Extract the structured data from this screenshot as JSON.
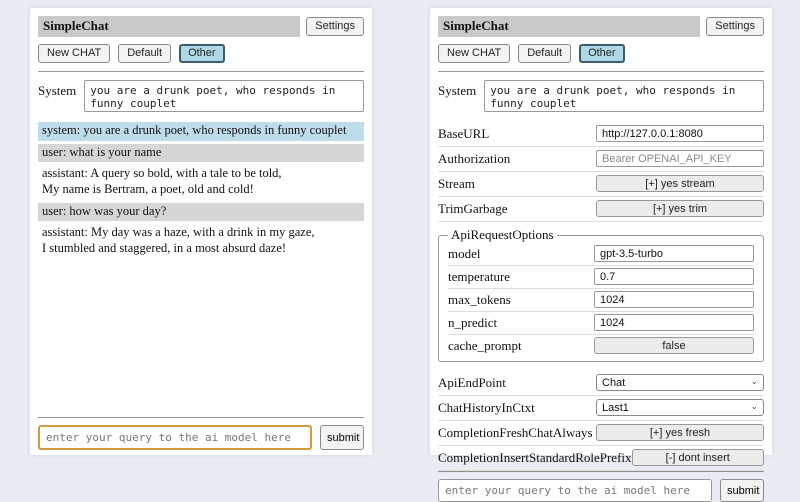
{
  "header": {
    "title": "SimpleChat",
    "settings_label": "Settings",
    "new_chat_label": "New CHAT",
    "sessions": [
      "Default",
      "Other"
    ],
    "active_session": "Other"
  },
  "system_prompt": {
    "label": "System",
    "value": "you are a drunk poet, who responds in funny couplet"
  },
  "chat": {
    "messages": [
      {
        "role": "system",
        "text": "system: you are a drunk poet, who responds in funny couplet"
      },
      {
        "role": "user",
        "text": "user: what is your name"
      },
      {
        "role": "assistant",
        "text": "assistant: A query so bold, with a tale to be told,\nMy name is Bertram, a poet, old and cold!"
      },
      {
        "role": "user",
        "text": "user: how was your day?"
      },
      {
        "role": "assistant",
        "text": "assistant: My day was a haze, with a drink in my gaze,\nI stumbled and staggered, in a most absurd daze!"
      }
    ]
  },
  "query": {
    "placeholder": "enter your query to the ai model here",
    "submit_label": "submit"
  },
  "settings": {
    "rows": [
      {
        "label": "BaseURL",
        "control": "input",
        "value": "http://127.0.0.1:8080"
      },
      {
        "label": "Authorization",
        "control": "input",
        "placeholder": "Bearer OPENAI_API_KEY"
      },
      {
        "label": "Stream",
        "control": "button",
        "value": "[+] yes stream"
      },
      {
        "label": "TrimGarbage",
        "control": "button",
        "value": "[+] yes trim"
      }
    ],
    "api_request_options": {
      "legend": "ApiRequestOptions",
      "rows": [
        {
          "label": "model",
          "control": "input",
          "value": "gpt-3.5-turbo"
        },
        {
          "label": "temperature",
          "control": "input",
          "value": "0.7"
        },
        {
          "label": "max_tokens",
          "control": "input",
          "value": "1024"
        },
        {
          "label": "n_predict",
          "control": "input",
          "value": "1024"
        },
        {
          "label": "cache_prompt",
          "control": "button",
          "value": "false"
        }
      ]
    },
    "rows_bottom": [
      {
        "label": "ApiEndPoint",
        "control": "select",
        "value": "Chat"
      },
      {
        "label": "ChatHistoryInCtxt",
        "control": "select",
        "value": "Last1"
      },
      {
        "label": "CompletionFreshChatAlways",
        "control": "button",
        "value": "[+] yes fresh"
      },
      {
        "label": "CompletionInsertStandardRolePrefix",
        "control": "button",
        "value": "[-] dont insert"
      }
    ]
  },
  "colors": {
    "page_bg": "#e9ecf2",
    "panel_bg": "#ffffff",
    "titlebar_bg": "#c9c9c9",
    "active_session_bg": "#add8e6",
    "system_msg_bg": "#bedce9",
    "user_msg_bg": "#d6d6d6",
    "query_focus_border": "#d09a45"
  }
}
